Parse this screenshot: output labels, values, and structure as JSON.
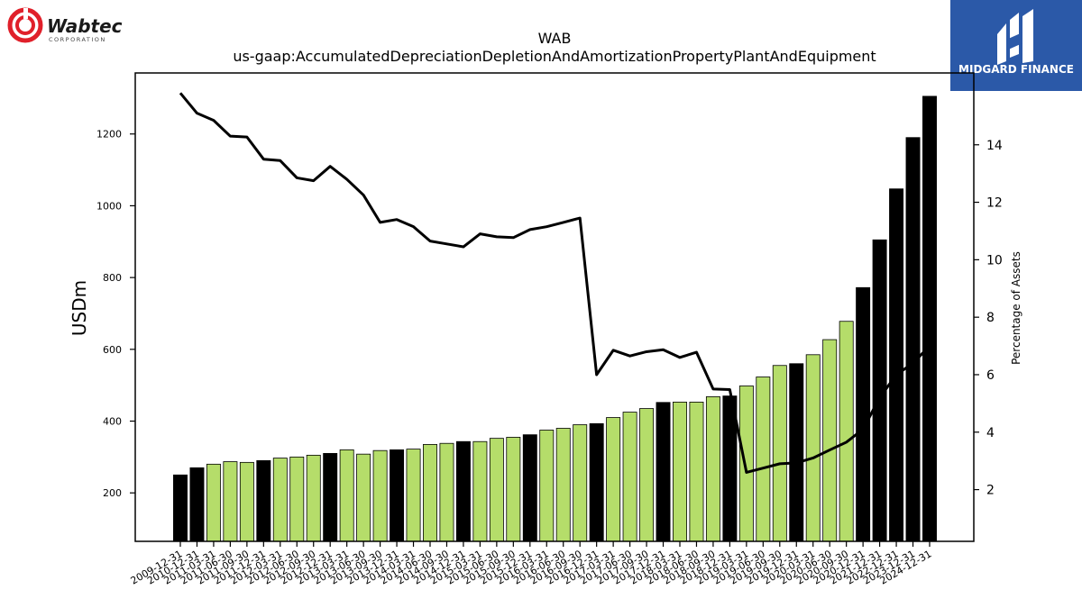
{
  "branding": {
    "company_logo_text": "Wabtec",
    "company_logo_subtext": "CORPORATION",
    "publisher_logo_text": "MIDGARD FINANCE"
  },
  "chart_data": {
    "type": "bar",
    "title": "WAB",
    "subtitle": "us-gaap:AccumulatedDepreciationDepletionAndAmortizationPropertyPlantAndEquipment",
    "ylabel": "USDm",
    "y2label": "Percentage of Assets",
    "ylim": [
      65,
      1370
    ],
    "y2lim": [
      0.2,
      16.5
    ],
    "yticks": [
      200,
      400,
      600,
      800,
      1000,
      1200
    ],
    "y2ticks": [
      2,
      4,
      6,
      8,
      10,
      12,
      14
    ],
    "colors": {
      "annual": "#000000",
      "quarterly": "#b5dd6a",
      "line": "#000000"
    },
    "categories": [
      "2009-12-31",
      "2010-12-31",
      "2011-03-31",
      "2011-06-30",
      "2011-09-30",
      "2011-12-31",
      "2012-03-31",
      "2012-06-30",
      "2012-09-30",
      "2012-12-31",
      "2013-03-31",
      "2013-06-30",
      "2013-09-30",
      "2013-12-31",
      "2014-03-31",
      "2014-06-30",
      "2014-09-30",
      "2014-12-31",
      "2015-03-31",
      "2015-06-30",
      "2015-09-30",
      "2015-12-31",
      "2016-03-31",
      "2016-06-30",
      "2016-09-30",
      "2016-12-31",
      "2017-03-31",
      "2017-06-30",
      "2017-09-30",
      "2017-12-31",
      "2018-03-31",
      "2018-06-30",
      "2018-09-30",
      "2018-12-31",
      "2019-03-31",
      "2019-06-30",
      "2019-09-30",
      "2019-12-31",
      "2020-03-31",
      "2020-06-30",
      "2020-09-30",
      "2020-12-31",
      "2021-12-31",
      "2022-12-31",
      "2023-12-31",
      "2024-12-31"
    ],
    "series": [
      {
        "values": [
          250,
          270,
          280,
          287,
          285,
          290,
          297,
          300,
          305,
          310,
          320,
          308,
          318,
          320,
          322,
          335,
          338,
          343,
          343,
          352,
          355,
          362,
          375,
          380,
          390,
          393,
          410,
          425,
          435,
          452,
          453,
          453,
          468,
          470,
          498,
          523,
          555,
          560,
          585,
          627,
          678,
          772,
          905,
          1047,
          1190,
          1305
        ],
        "annual": [
          true,
          true,
          false,
          false,
          false,
          true,
          false,
          false,
          false,
          true,
          false,
          false,
          false,
          true,
          false,
          false,
          false,
          true,
          false,
          false,
          false,
          true,
          false,
          false,
          false,
          true,
          false,
          false,
          false,
          true,
          false,
          false,
          false,
          true,
          false,
          false,
          false,
          true,
          false,
          false,
          false,
          true,
          true,
          true,
          true,
          true
        ]
      },
      {
        "values": [
          15.8,
          15.1,
          14.85,
          14.3,
          14.27,
          13.5,
          13.45,
          12.85,
          12.75,
          13.25,
          12.8,
          12.25,
          11.3,
          11.4,
          11.15,
          10.65,
          10.55,
          10.45,
          10.9,
          10.8,
          10.77,
          11.05,
          11.15,
          11.3,
          11.45,
          6.0,
          6.85,
          6.65,
          6.8,
          6.87,
          6.6,
          6.78,
          5.5,
          5.48,
          2.6,
          2.75,
          2.9,
          2.93,
          3.1,
          3.38,
          3.65,
          4.1,
          5.2,
          6.0,
          6.4,
          7.0
        ]
      }
    ]
  }
}
